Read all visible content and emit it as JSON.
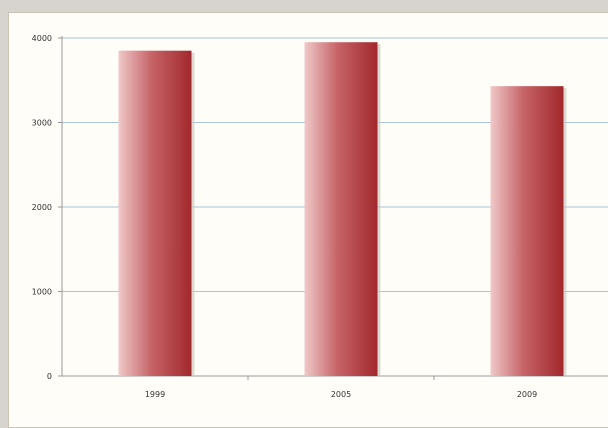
{
  "chart_data": {
    "type": "bar",
    "title": "",
    "xlabel": "",
    "ylabel": "",
    "categories": [
      "1999",
      "2005",
      "2009"
    ],
    "values": [
      3850,
      3950,
      3430
    ],
    "ylim": [
      0,
      4000
    ],
    "yticks": [
      "0",
      "1000",
      "2000",
      "3000",
      "4000"
    ],
    "grid": true,
    "legend": "none",
    "colors": {
      "bar_light": "#f0c8c8",
      "bar_mid": "#c66468",
      "bar_dark": "#a1282c",
      "grid": "#aac4d8"
    }
  }
}
